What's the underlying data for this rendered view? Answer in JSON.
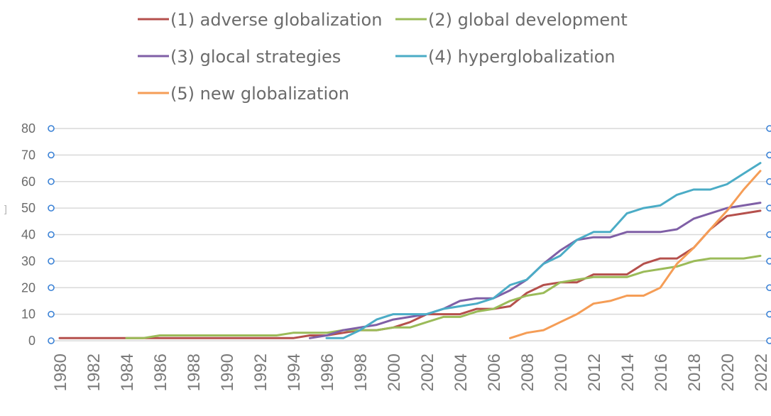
{
  "chart_data": {
    "type": "line",
    "title": "",
    "xlabel": "",
    "ylabel": "",
    "ylim": [
      0,
      80
    ],
    "xlim": [
      1980,
      2022
    ],
    "y_ticks": [
      "0",
      "10",
      "20",
      "30",
      "40",
      "50",
      "60",
      "70",
      "80"
    ],
    "y_tick_values": [
      0,
      10,
      20,
      30,
      40,
      50,
      60,
      70,
      80
    ],
    "x": [
      1980,
      1981,
      1982,
      1983,
      1984,
      1985,
      1986,
      1987,
      1988,
      1989,
      1990,
      1991,
      1992,
      1993,
      1994,
      1995,
      1996,
      1997,
      1998,
      1999,
      2000,
      2001,
      2002,
      2003,
      2004,
      2005,
      2006,
      2007,
      2008,
      2009,
      2010,
      2011,
      2012,
      2013,
      2014,
      2015,
      2016,
      2017,
      2018,
      2019,
      2020,
      2021,
      2022
    ],
    "x_tick_labels": [
      "1980",
      "1982",
      "1984",
      "1986",
      "1988",
      "1990",
      "1992",
      "1994",
      "1996",
      "1998",
      "2000",
      "2002",
      "2004",
      "2006",
      "2008",
      "2010",
      "2012",
      "2014",
      "2016",
      "2018",
      "2020",
      "2022"
    ],
    "grid": true,
    "legend_position": "top",
    "series": [
      {
        "name": "(1) adverse globalization",
        "color": "#b5504c",
        "values": [
          1,
          1,
          1,
          1,
          1,
          1,
          1,
          1,
          1,
          1,
          1,
          1,
          1,
          1,
          1,
          2,
          2,
          3,
          4,
          4,
          5,
          7,
          10,
          10,
          10,
          12,
          12,
          13,
          18,
          21,
          22,
          22,
          25,
          25,
          25,
          29,
          31,
          31,
          35,
          42,
          47,
          48,
          49
        ]
      },
      {
        "name": "(2) global development",
        "color": "#9bbb59",
        "values": [
          null,
          null,
          null,
          null,
          1,
          1,
          2,
          2,
          2,
          2,
          2,
          2,
          2,
          2,
          3,
          3,
          3,
          4,
          4,
          4,
          5,
          5,
          7,
          9,
          9,
          11,
          12,
          15,
          17,
          18,
          22,
          23,
          24,
          24,
          24,
          26,
          27,
          28,
          30,
          31,
          31,
          31,
          32
        ]
      },
      {
        "name": "(3) glocal strategies",
        "color": "#7f5fa6",
        "values": [
          null,
          null,
          null,
          null,
          null,
          null,
          null,
          null,
          null,
          null,
          null,
          null,
          null,
          null,
          null,
          1,
          2,
          4,
          5,
          6,
          8,
          9,
          10,
          12,
          15,
          16,
          16,
          19,
          23,
          29,
          34,
          38,
          39,
          39,
          41,
          41,
          41,
          42,
          46,
          48,
          50,
          51,
          52
        ]
      },
      {
        "name": "(4) hyperglobalization",
        "color": "#4bacc6",
        "values": [
          null,
          null,
          null,
          null,
          null,
          null,
          null,
          null,
          null,
          null,
          null,
          null,
          null,
          null,
          null,
          null,
          1,
          1,
          4,
          8,
          10,
          10,
          10,
          12,
          13,
          14,
          16,
          21,
          23,
          29,
          32,
          38,
          41,
          41,
          48,
          50,
          51,
          55,
          57,
          57,
          59,
          63,
          67
        ]
      },
      {
        "name": "(5) new globalization",
        "color": "#f59d56",
        "values": [
          null,
          null,
          null,
          null,
          null,
          null,
          null,
          null,
          null,
          null,
          null,
          null,
          null,
          null,
          null,
          null,
          null,
          null,
          null,
          null,
          null,
          null,
          null,
          null,
          null,
          null,
          null,
          1,
          3,
          4,
          7,
          10,
          14,
          15,
          17,
          17,
          20,
          29,
          35,
          42,
          49,
          57,
          64
        ]
      }
    ]
  },
  "ui": {
    "selection_handle_color": "#3b82d6",
    "left_edge_glyph": "]"
  }
}
